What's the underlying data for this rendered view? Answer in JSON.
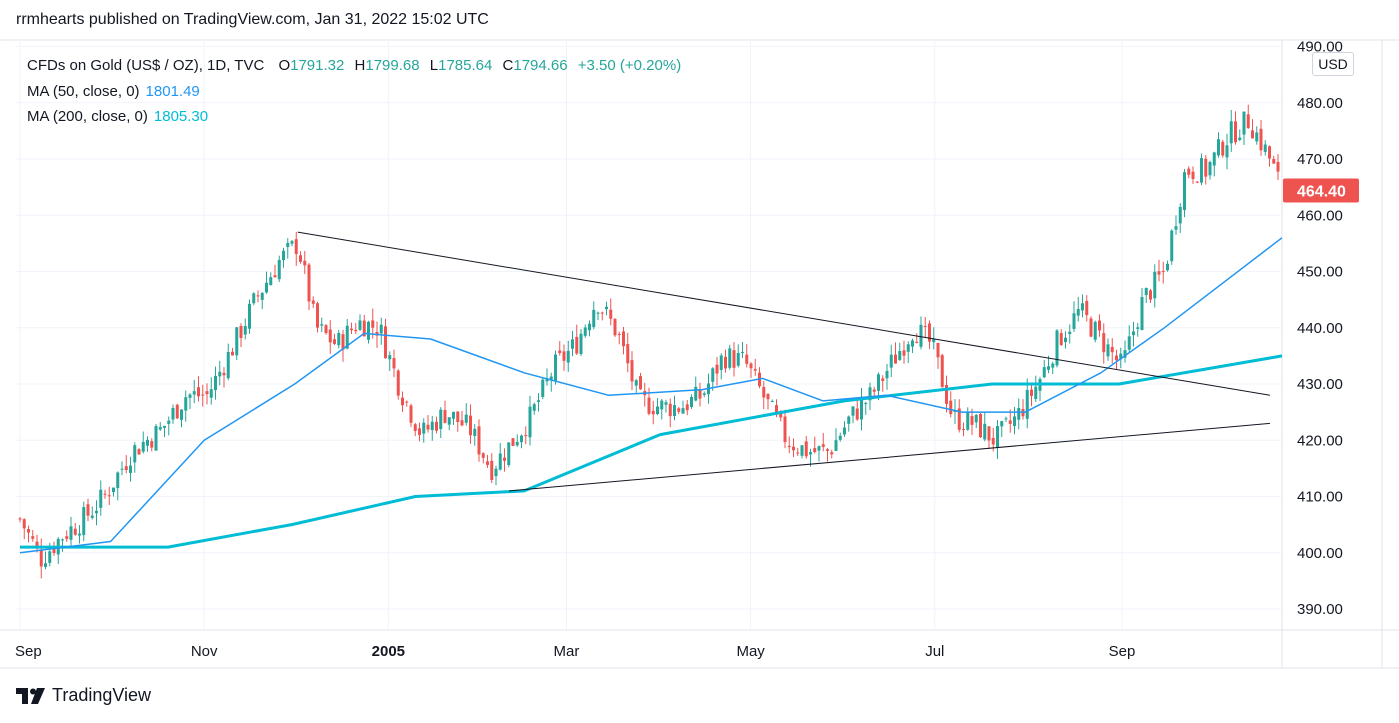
{
  "header": {
    "published": "rrmhearts published on TradingView.com, Jan 31, 2022 15:02 UTC"
  },
  "legend": {
    "symbol": "CFDs on Gold (US$ / OZ), 1D, TVC",
    "o_label": "O",
    "o_value": "1791.32",
    "h_label": "H",
    "h_value": "1799.68",
    "l_label": "L",
    "l_value": "1785.64",
    "c_label": "C",
    "c_value": "1794.66",
    "change": "+3.50 (+0.20%)",
    "ma50_label": "MA (50, close, 0)",
    "ma50_value": "1801.49",
    "ma200_label": "MA (200, close, 0)",
    "ma200_value": "1805.30"
  },
  "currency_button": "USD",
  "brand": "TradingView",
  "colors": {
    "up": "#26a69a",
    "down": "#ef5350",
    "ma50": "#2196f3",
    "ma200": "#00bcd4",
    "last_price": "#ef5350"
  },
  "chart_data": {
    "type": "candlestick",
    "y_axis": {
      "min": 385,
      "max": 490,
      "ticks": [
        "490.00",
        "480.00",
        "470.00",
        "460.00",
        "450.00",
        "440.00",
        "430.00",
        "420.00",
        "410.00",
        "400.00",
        "390.00"
      ]
    },
    "x_axis": {
      "ticks": [
        "Sep",
        "Nov",
        "2005",
        "Mar",
        "May",
        "Jul",
        "Sep"
      ]
    },
    "last_price": "464.40",
    "close_path": [
      [
        "2004-09-01",
        406
      ],
      [
        "2004-09-08",
        399
      ],
      [
        "2004-09-15",
        403
      ],
      [
        "2004-09-22",
        406
      ],
      [
        "2004-09-29",
        410
      ],
      [
        "2004-10-08",
        418
      ],
      [
        "2004-10-18",
        422
      ],
      [
        "2004-10-26",
        428
      ],
      [
        "2004-11-02",
        428
      ],
      [
        "2004-11-10",
        436
      ],
      [
        "2004-11-18",
        445
      ],
      [
        "2004-11-26",
        452
      ],
      [
        "2004-12-02",
        455
      ],
      [
        "2004-12-08",
        440
      ],
      [
        "2004-12-15",
        437
      ],
      [
        "2004-12-22",
        441
      ],
      [
        "2004-12-29",
        440
      ],
      [
        "2005-01-05",
        429
      ],
      [
        "2005-01-12",
        421
      ],
      [
        "2005-01-20",
        425
      ],
      [
        "2005-01-28",
        422
      ],
      [
        "2005-02-04",
        415
      ],
      [
        "2005-02-10",
        419
      ],
      [
        "2005-02-17",
        424
      ],
      [
        "2005-02-25",
        433
      ],
      [
        "2005-03-04",
        437
      ],
      [
        "2005-03-11",
        445
      ],
      [
        "2005-03-18",
        439
      ],
      [
        "2005-03-25",
        427
      ],
      [
        "2005-04-01",
        426
      ],
      [
        "2005-04-08",
        426
      ],
      [
        "2005-04-15",
        428
      ],
      [
        "2005-04-22",
        435
      ],
      [
        "2005-04-29",
        434
      ],
      [
        "2005-05-06",
        427
      ],
      [
        "2005-05-13",
        420
      ],
      [
        "2005-05-20",
        418
      ],
      [
        "2005-05-27",
        418
      ],
      [
        "2005-06-03",
        424
      ],
      [
        "2005-06-10",
        428
      ],
      [
        "2005-06-17",
        434
      ],
      [
        "2005-06-24",
        440
      ],
      [
        "2005-06-30",
        437
      ],
      [
        "2005-07-07",
        424
      ],
      [
        "2005-07-14",
        423
      ],
      [
        "2005-07-21",
        420
      ],
      [
        "2005-07-28",
        424
      ],
      [
        "2005-08-04",
        430
      ],
      [
        "2005-08-11",
        438
      ],
      [
        "2005-08-18",
        443
      ],
      [
        "2005-08-25",
        438
      ],
      [
        "2005-09-01",
        433
      ],
      [
        "2005-09-08",
        445
      ],
      [
        "2005-09-15",
        450
      ],
      [
        "2005-09-22",
        468
      ],
      [
        "2005-09-29",
        468
      ],
      [
        "2005-10-06",
        474
      ],
      [
        "2005-10-13",
        477
      ],
      [
        "2005-10-20",
        470
      ],
      [
        "2005-10-24",
        464.4
      ]
    ],
    "ma50_path": [
      [
        "2004-09-01",
        400
      ],
      [
        "2004-10-01",
        402
      ],
      [
        "2004-11-01",
        420
      ],
      [
        "2004-12-01",
        430
      ],
      [
        "2004-12-24",
        439
      ],
      [
        "2005-01-15",
        438
      ],
      [
        "2005-02-15",
        432
      ],
      [
        "2005-03-15",
        428
      ],
      [
        "2005-04-15",
        429
      ],
      [
        "2005-05-05",
        431
      ],
      [
        "2005-05-25",
        427
      ],
      [
        "2005-06-15",
        428
      ],
      [
        "2005-07-10",
        425
      ],
      [
        "2005-07-31",
        425
      ],
      [
        "2005-08-25",
        432
      ],
      [
        "2005-09-15",
        440
      ],
      [
        "2005-10-24",
        456
      ]
    ],
    "ma200_path": [
      [
        "2004-09-01",
        401
      ],
      [
        "2004-10-20",
        401
      ],
      [
        "2004-11-30",
        405
      ],
      [
        "2005-01-10",
        410
      ],
      [
        "2005-02-15",
        411
      ],
      [
        "2005-04-01",
        421
      ],
      [
        "2005-06-01",
        427
      ],
      [
        "2005-07-20",
        430
      ],
      [
        "2005-08-31",
        430
      ],
      [
        "2005-10-24",
        435
      ]
    ],
    "trendlines": [
      {
        "from": [
          "2004-12-02",
          457
        ],
        "to": [
          "2005-10-20",
          428
        ]
      },
      {
        "from": [
          "2005-02-10",
          411
        ],
        "to": [
          "2005-10-20",
          423
        ]
      }
    ]
  }
}
